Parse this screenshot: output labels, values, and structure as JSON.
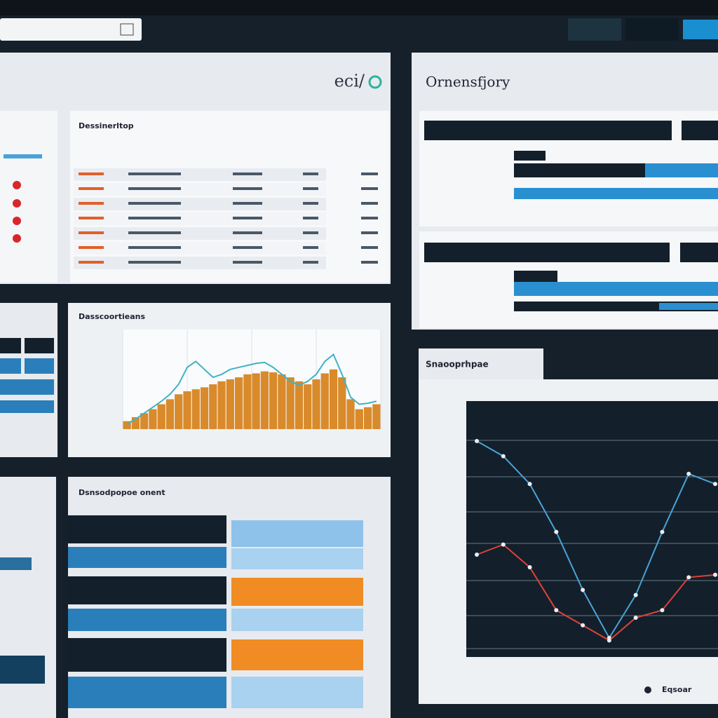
{
  "header": {
    "brand": "eci/"
  },
  "panels": {
    "overview_title": "Ornensfjory",
    "table_title": "Dessinerltop",
    "chart_title": "Dasscoortieans",
    "trend_title": "Snaooprhpae",
    "bottom_title": "Dsnsodpopoe onent",
    "legend_label": "Eqsoar"
  },
  "chart_data": [
    {
      "type": "bar",
      "color": "#d98a2b",
      "ylim": [
        0,
        100
      ],
      "values": [
        8,
        12,
        16,
        20,
        25,
        30,
        35,
        38,
        40,
        42,
        45,
        48,
        50,
        52,
        55,
        56,
        58,
        57,
        55,
        52,
        48,
        45,
        50,
        56,
        60,
        52,
        30,
        20,
        22,
        25
      ]
    },
    {
      "type": "line",
      "color": "#3fb3c4",
      "ylim": [
        0,
        100
      ],
      "values": [
        5,
        10,
        16,
        22,
        28,
        35,
        45,
        62,
        68,
        60,
        52,
        55,
        60,
        62,
        64,
        66,
        67,
        62,
        55,
        48,
        44,
        48,
        55,
        68,
        75,
        55,
        32,
        25,
        26,
        28
      ]
    },
    {
      "type": "line",
      "x": [
        0,
        1,
        2,
        3,
        4,
        5,
        6,
        7,
        8,
        9
      ],
      "xlim": [
        0,
        9
      ],
      "ylim": [
        0,
        100
      ],
      "series": [
        {
          "color": "#4aa3d8",
          "values": [
            85,
            79,
            68,
            49,
            26,
            7,
            24,
            49,
            72,
            68
          ]
        },
        {
          "color": "#e0413a",
          "values": [
            40,
            44,
            35,
            18,
            12,
            6,
            15,
            18,
            31,
            32
          ]
        }
      ]
    }
  ]
}
